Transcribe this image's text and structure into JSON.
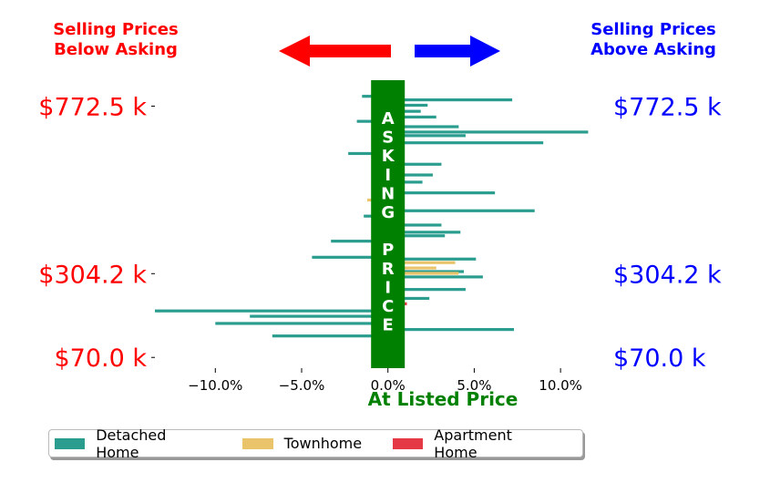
{
  "chart_data": {
    "type": "bar",
    "orientation": "horizontal",
    "left_title": [
      "Selling Prices",
      "Below Asking"
    ],
    "right_title": [
      "Selling Prices",
      "Above Asking"
    ],
    "center_label": "ASKING PRICE",
    "xlabel": "At Listed Price",
    "xlim": [
      -13.5,
      12
    ],
    "x_ticks": [
      -10,
      -5,
      0,
      5,
      10
    ],
    "x_tick_labels": [
      "−10.0%",
      "−5.0%",
      "0.0%",
      "5.0%",
      "10.0%"
    ],
    "ylim": [
      40,
      845
    ],
    "y_ticks": [
      70.0,
      304.2,
      772.5
    ],
    "y_tick_labels_left": [
      "$70.0 k",
      "$304.2 k",
      "$772.5 k"
    ],
    "y_tick_labels_right": [
      "$70.0 k",
      "$304.2 k",
      "$772.5 k"
    ],
    "colors": {
      "detached": "#2a9d8f",
      "townhome": "#e9c46a",
      "apartment": "#e63946",
      "left_title": "#ff0000",
      "right_title": "#0000ff",
      "center": "#008000"
    },
    "legend_position": "bottom",
    "series": [
      {
        "name": "Detached Home",
        "key": "detached",
        "points": [
          {
            "y": 800,
            "x": -1.5
          },
          {
            "y": 790,
            "x": 7.2
          },
          {
            "y": 775,
            "x": 2.3
          },
          {
            "y": 758,
            "x": 1.9
          },
          {
            "y": 742,
            "x": 2.8
          },
          {
            "y": 730,
            "x": -1.8
          },
          {
            "y": 715,
            "x": 4.1
          },
          {
            "y": 700,
            "x": 11.6
          },
          {
            "y": 690,
            "x": 4.5
          },
          {
            "y": 670,
            "x": 9.0
          },
          {
            "y": 640,
            "x": -2.3
          },
          {
            "y": 610,
            "x": 3.1
          },
          {
            "y": 580,
            "x": 2.6
          },
          {
            "y": 560,
            "x": 2.0
          },
          {
            "y": 530,
            "x": 6.2
          },
          {
            "y": 480,
            "x": 8.5
          },
          {
            "y": 465,
            "x": -1.4
          },
          {
            "y": 440,
            "x": 3.1
          },
          {
            "y": 420,
            "x": 4.2
          },
          {
            "y": 410,
            "x": 3.3
          },
          {
            "y": 395,
            "x": -3.3
          },
          {
            "y": 350,
            "x": -4.4
          },
          {
            "y": 345,
            "x": 5.1
          },
          {
            "y": 310,
            "x": 4.4
          },
          {
            "y": 295,
            "x": 5.5
          },
          {
            "y": 260,
            "x": 4.5
          },
          {
            "y": 235,
            "x": 2.4
          },
          {
            "y": 200,
            "x": -13.5
          },
          {
            "y": 185,
            "x": -8.0
          },
          {
            "y": 165,
            "x": -10.0
          },
          {
            "y": 148,
            "x": 7.3
          },
          {
            "y": 130,
            "x": -6.7
          }
        ]
      },
      {
        "name": "Townhome",
        "key": "townhome",
        "points": [
          {
            "y": 510,
            "x": -1.2
          },
          {
            "y": 335,
            "x": 3.9
          },
          {
            "y": 320,
            "x": 2.8
          },
          {
            "y": 305,
            "x": 4.1
          }
        ]
      },
      {
        "name": "Apartment Home",
        "key": "apartment",
        "points": [
          {
            "y": 220,
            "x": 1.1
          }
        ]
      }
    ]
  }
}
